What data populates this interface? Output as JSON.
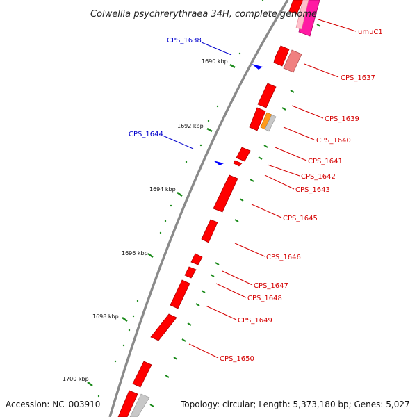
{
  "title": "Colwellia psychrerythraea 34H, complete genome",
  "footer": {
    "accession": "Accession: NC_003910",
    "info": "Topology: circular; Length: 5,373,180 bp; Genes: 5,027"
  },
  "colors": {
    "backbone": "#8a8a8a",
    "gene_red": "#ff0000",
    "gene_magenta": "#ff1aa3",
    "gene_pink": "#f08080",
    "gene_orange": "#ff9a1a",
    "gene_gray": "#c8c8c8",
    "rna_blue": "#0000ff",
    "label_red": "#d40000",
    "label_blue": "#0000cc",
    "tick_green": "#1a8a1a"
  },
  "kbp_ticks": [
    "1690 kbp",
    "1692 kbp",
    "1694 kbp",
    "1696 kbp",
    "1698 kbp",
    "1700 kbp"
  ],
  "gene_labels": [
    "umuC1",
    "CPS_1637",
    "CPS_1639",
    "CPS_1640",
    "CPS_1641",
    "CPS_1642",
    "CPS_1643",
    "CPS_1645",
    "CPS_1646",
    "CPS_1647",
    "CPS_1648",
    "CPS_1649",
    "CPS_1650"
  ],
  "rna_labels": [
    "CPS_1638",
    "CPS_1644"
  ]
}
